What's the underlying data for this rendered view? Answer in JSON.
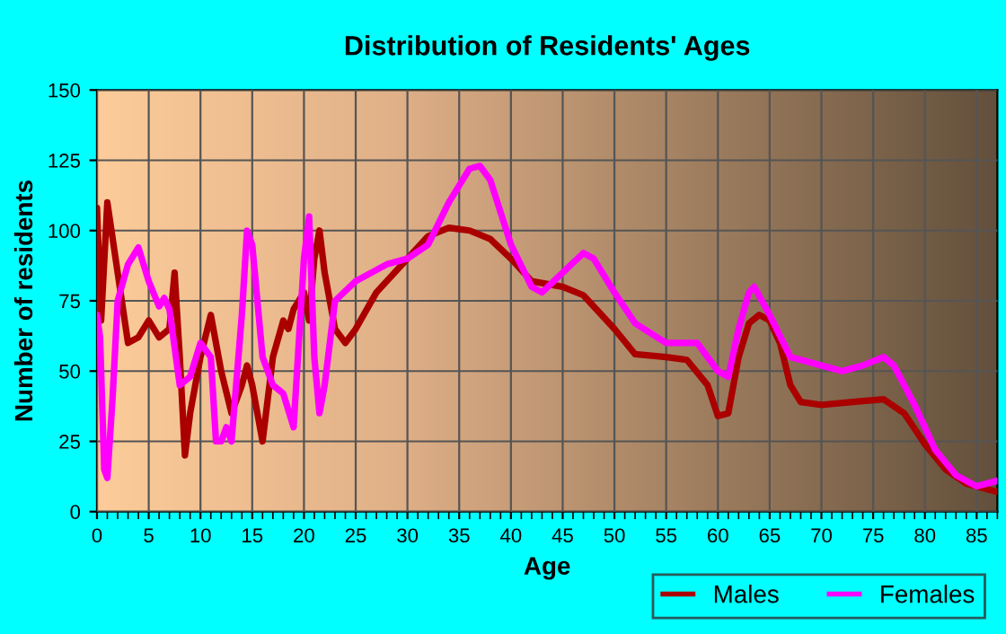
{
  "chart_data": {
    "type": "line",
    "title": "Distribution of Residents' Ages",
    "xlabel": "Age",
    "ylabel": "Number of residents",
    "xlim": [
      0,
      87
    ],
    "xticks": [
      0,
      5,
      10,
      15,
      20,
      25,
      30,
      35,
      40,
      45,
      50,
      55,
      60,
      65,
      70,
      75,
      80,
      85
    ],
    "ylim": [
      0,
      150
    ],
    "yticks": [
      0,
      25,
      50,
      75,
      100,
      125,
      150
    ],
    "grid": true,
    "legend": "bottom right",
    "line_style": "solid",
    "series": [
      {
        "name": "Males",
        "color": "#aa0000",
        "x": [
          0,
          0.4,
          1,
          2,
          3,
          4,
          5,
          6,
          7,
          7.5,
          8,
          8.5,
          9,
          10,
          11,
          12,
          13,
          14,
          14.5,
          15,
          16,
          17,
          18,
          18.5,
          19,
          20,
          20.5,
          21,
          21.5,
          22,
          23,
          24,
          25,
          27,
          30,
          32,
          34,
          36,
          38,
          40,
          42,
          45,
          47,
          50,
          52,
          55,
          57,
          59,
          60,
          61,
          62,
          63,
          64,
          65,
          66,
          67,
          68,
          70,
          73,
          76,
          78,
          80,
          82,
          84,
          87
        ],
        "values": [
          108,
          68,
          110,
          85,
          60,
          62,
          68,
          62,
          65,
          85,
          55,
          20,
          35,
          55,
          70,
          50,
          35,
          45,
          52,
          45,
          25,
          55,
          68,
          65,
          72,
          78,
          68,
          90,
          100,
          85,
          65,
          60,
          65,
          78,
          90,
          98,
          101,
          100,
          97,
          90,
          82,
          80,
          77,
          65,
          56,
          55,
          54,
          45,
          34,
          35,
          55,
          67,
          70,
          68,
          60,
          45,
          39,
          38,
          39,
          40,
          35,
          24,
          15,
          10,
          7
        ]
      },
      {
        "name": "Females",
        "color": "#ff00ff",
        "x": [
          0,
          0.3,
          0.7,
          1,
          1.5,
          2,
          3,
          4,
          5,
          6,
          6.5,
          7,
          8,
          9,
          10,
          11,
          11.5,
          12,
          12.5,
          13,
          14,
          14.5,
          15,
          16,
          17,
          18,
          19,
          20,
          20.5,
          21,
          21.5,
          22,
          23,
          25,
          28,
          30,
          32,
          34,
          36,
          37,
          38,
          40,
          42,
          43,
          45,
          47,
          48,
          50,
          52,
          55,
          58,
          60,
          61,
          62,
          63,
          63.5,
          65,
          67,
          70,
          72,
          74,
          76,
          77,
          79,
          81,
          83,
          85,
          87
        ],
        "values": [
          70,
          62,
          15,
          12,
          40,
          75,
          88,
          94,
          82,
          73,
          76,
          72,
          45,
          48,
          60,
          55,
          25,
          25,
          30,
          25,
          70,
          100,
          95,
          55,
          45,
          42,
          30,
          90,
          105,
          55,
          35,
          45,
          75,
          82,
          88,
          90,
          95,
          110,
          122,
          123,
          118,
          95,
          80,
          78,
          85,
          92,
          90,
          78,
          67,
          60,
          60,
          50,
          48,
          65,
          78,
          80,
          70,
          55,
          52,
          50,
          52,
          55,
          52,
          38,
          22,
          13,
          9,
          11
        ]
      }
    ]
  }
}
